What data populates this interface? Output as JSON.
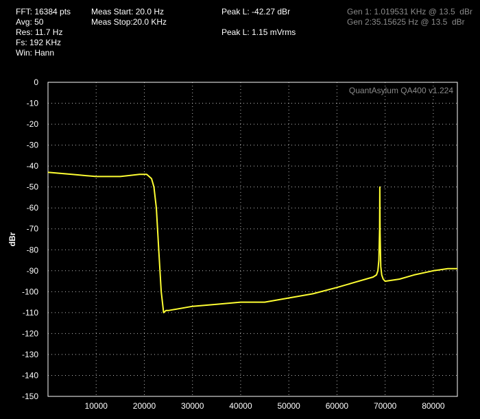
{
  "info": {
    "fft": "FFT: 16384 pts",
    "avg": "Avg: 50",
    "res": "Res: 11.7 Hz",
    "fs": "Fs: 192 KHz",
    "win": "Win: Hann",
    "meas_start": "Meas Start: 20.0 Hz",
    "meas_stop": "Meas Stop:20.0 KHz",
    "peak_dbr": "Peak L: -42.27 dBr",
    "peak_mvrms": "Peak L: 1.15 mVrms",
    "gen1": "Gen 1: 1.019531 KHz @ 13.5  dBr",
    "gen2": "Gen 2:35.15625 Hz @ 13.5  dBr"
  },
  "watermark": "QuantAsylum QA400 v1.224",
  "colors": {
    "background": "#000000",
    "trace": "#ffff33",
    "grid": "#ffffff",
    "gen_text": "#8a8a8a"
  },
  "chart_data": {
    "type": "line",
    "xlabel": "",
    "ylabel": "dBr",
    "xlim": [
      0,
      85000
    ],
    "ylim": [
      -150,
      0
    ],
    "x_ticks": [
      10000,
      20000,
      30000,
      40000,
      50000,
      60000,
      70000,
      80000
    ],
    "y_ticks": [
      0,
      -10,
      -20,
      -30,
      -40,
      -50,
      -60,
      -70,
      -80,
      -90,
      -100,
      -110,
      -120,
      -130,
      -140,
      -150
    ],
    "grid": true,
    "series": [
      {
        "color": "#ffff33",
        "x": [
          0,
          5000,
          10000,
          15000,
          19000,
          20000,
          20500,
          21000,
          21500,
          22000,
          22500,
          23000,
          23500,
          24000,
          24500,
          25000,
          30000,
          35000,
          40000,
          45000,
          50000,
          55000,
          60000,
          63000,
          66000,
          67500,
          68200,
          68500,
          68700,
          68850,
          68900,
          68950,
          69100,
          69300,
          69600,
          70000,
          73000,
          76000,
          80000,
          83000,
          85000
        ],
        "y": [
          -43,
          -44,
          -45,
          -45,
          -44,
          -44,
          -44,
          -45,
          -46,
          -50,
          -60,
          -80,
          -100,
          -110,
          -109,
          -109,
          -107,
          -106,
          -105,
          -105,
          -103,
          -101,
          -98,
          -96,
          -94,
          -93,
          -92,
          -90,
          -85,
          -70,
          -50,
          -72,
          -88,
          -92,
          -94,
          -95,
          -94,
          -92,
          -90,
          -89,
          -89
        ]
      }
    ]
  }
}
